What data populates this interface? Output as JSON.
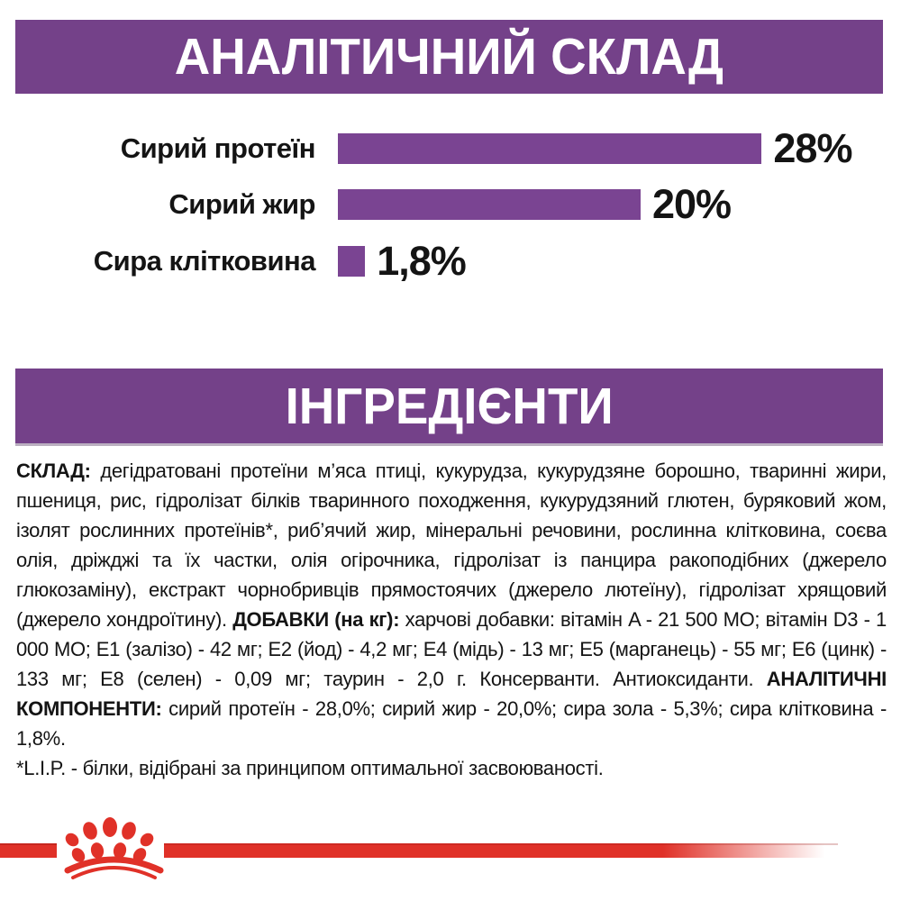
{
  "colors": {
    "banner_purple": "#744189",
    "bar_purple": "#7a4492",
    "accent_red": "#e03128",
    "text": "#141414",
    "banner_text": "#ffffff"
  },
  "header_analytical": {
    "title": "АНАЛІТИЧНИЙ СКЛАД"
  },
  "header_ingredients": {
    "title": "ІНГРЕДІЄНТИ"
  },
  "chart_data": {
    "type": "bar",
    "orientation": "horizontal",
    "categories": [
      "Сирий протеїн",
      "Сирий жир",
      "Сира клітковина"
    ],
    "values": [
      28,
      20,
      1.8
    ],
    "value_labels": [
      "28%",
      "20%",
      "1,8%"
    ],
    "unit": "%",
    "xlim": [
      0,
      28
    ],
    "title": "АНАЛІТИЧНИЙ СКЛАД",
    "grid": false,
    "legend": false,
    "bar_color": "#7a4492",
    "label_position": "right-of-bar"
  },
  "ingredients": {
    "segments": [
      {
        "text": "СКЛАД: ",
        "bold": true
      },
      {
        "text": "дегідратовані протеїни м’яса птиці, кукурудза, кукурудзяне борошно, тваринні жири, пшениця, рис, гідролізат білків тваринного походження, кукурудзяний глютен, буряковий жом, ізолят рослинних протеїнів*, риб’ячий жир, мінеральні речовини, рослинна клітковина, соєва олія, дріжджі та їх частки, олія огірочника, гідролізат із панцира ракоподібних (джерело глюкозаміну), екстракт чорнобривців прямостоячих (джерело лютеїну), гідролізат хрящовий (джерело хондроїтину). ",
        "bold": false
      },
      {
        "text": "ДОБАВКИ (на кг): ",
        "bold": true
      },
      {
        "text": "харчові добавки: вітамін A - 21 500 МО; вітамін D3 - 1 000 МО; E1 (залізо) - 42 мг; E2 (йод) - 4,2 мг; E4 (мідь) - 13 мг; E5 (марганець) - 55 мг; E6 (цинк) - 133 мг; E8 (селен) - 0,09 мг; таурин - 2,0 г. Консерванти. Антиоксиданти. ",
        "bold": false
      },
      {
        "text": "АНАЛІТИЧНІ КОМПОНЕНТИ: ",
        "bold": true
      },
      {
        "text": "сирий протеїн - 28,0%; сирий жир - 20,0%; сира зола - 5,3%; сира клітковина - 1,8%.",
        "bold": false
      }
    ],
    "footnote": "*L.I.P. - білки, відібрані за принципом оптимальної засвоюваності."
  },
  "footer": {
    "logo_icon": "paw-crown-icon"
  }
}
